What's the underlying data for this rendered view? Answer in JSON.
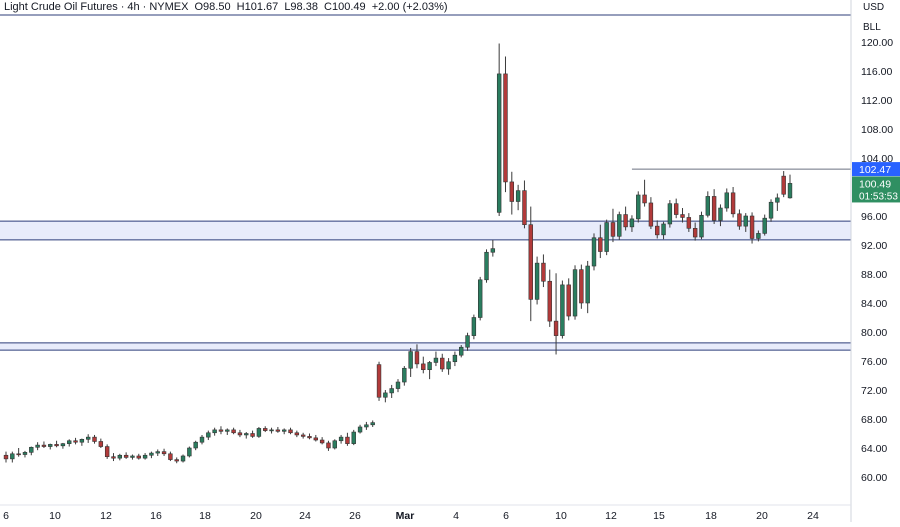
{
  "header": {
    "title": "Light Crude Oil Futures",
    "interval": "4h",
    "exchange": "NYMEX",
    "open": "O98.50",
    "high": "H101.67",
    "low": "L98.38",
    "close": "C100.49",
    "change": "+2.00 (+2.03%)",
    "currency": "USD",
    "unit": "BLL"
  },
  "colors": {
    "up": "#26a69a",
    "up_body": "#2a7d5f",
    "down": "#ef5350",
    "down_body": "#b23a3a",
    "zone_fill": "#e8ecfb",
    "line": "#2c3d7a",
    "badge_blue": "#2962ff",
    "badge_green": "#2f8f62"
  },
  "chart_data": {
    "type": "candlestick",
    "y_axis": {
      "min": 57,
      "max": 121,
      "ticks": [
        60,
        64,
        68,
        72,
        76,
        80,
        84,
        88,
        92,
        96,
        100,
        104,
        108,
        112,
        116,
        120
      ],
      "tick_labels": [
        "60.00",
        "64.00",
        "68.00",
        "72.00",
        "76.00",
        "80.00",
        "84.00",
        "88.00",
        "92.00",
        "96.00",
        "100.00",
        "104.00",
        "108.00",
        "112.00",
        "116.00",
        "120.00"
      ]
    },
    "x_axis": {
      "labels": [
        "6",
        "10",
        "12",
        "16",
        "18",
        "20",
        "24",
        "26",
        "Mar",
        "4",
        "6",
        "10",
        "12",
        "15",
        "18",
        "20",
        "24"
      ]
    },
    "zones": [
      {
        "from": 92.7,
        "to": 95.3
      },
      {
        "from": 77.5,
        "to": 78.5
      }
    ],
    "horizontal_lines": [
      119.8,
      102.47
    ],
    "price_badges": [
      {
        "value": 102.47,
        "label": "102.47"
      },
      {
        "value": 100.49,
        "label": "100.49",
        "countdown": "01:53:53"
      }
    ],
    "candles": [
      [
        63,
        63.5,
        62,
        62.5
      ],
      [
        62.5,
        63.5,
        62,
        63.2
      ],
      [
        63.2,
        64,
        62.8,
        63.1
      ],
      [
        63.1,
        63.6,
        62.7,
        63.4
      ],
      [
        63.4,
        64.2,
        63,
        64.1
      ],
      [
        64.1,
        64.8,
        63.7,
        64.4
      ],
      [
        64.4,
        64.9,
        64,
        64.2
      ],
      [
        64.2,
        64.6,
        63.8,
        64.5
      ],
      [
        64.5,
        65,
        64.1,
        64.3
      ],
      [
        64.3,
        64.7,
        63.9,
        64.6
      ],
      [
        64.6,
        65.2,
        64.2,
        65
      ],
      [
        65,
        65.4,
        64.5,
        64.8
      ],
      [
        64.8,
        65.3,
        64.3,
        65.2
      ],
      [
        65.2,
        65.9,
        64.7,
        65.5
      ],
      [
        65.5,
        65.8,
        64.6,
        64.9
      ],
      [
        64.9,
        65.3,
        64,
        64.2
      ],
      [
        64.2,
        64.5,
        62.5,
        62.8
      ],
      [
        62.8,
        63.3,
        62.2,
        62.6
      ],
      [
        62.6,
        63.2,
        62.3,
        63
      ],
      [
        63,
        63.4,
        62.5,
        62.7
      ],
      [
        62.7,
        63.1,
        62.4,
        62.9
      ],
      [
        62.9,
        63.2,
        62.4,
        62.6
      ],
      [
        62.6,
        63.3,
        62.4,
        63
      ],
      [
        63,
        63.5,
        62.6,
        63.3
      ],
      [
        63.3,
        63.8,
        62.9,
        63.5
      ],
      [
        63.5,
        63.9,
        62.9,
        63.2
      ],
      [
        63.2,
        63.5,
        62.2,
        62.4
      ],
      [
        62.4,
        62.7,
        61.9,
        62.2
      ],
      [
        62.2,
        63.1,
        62,
        62.9
      ],
      [
        62.9,
        64.2,
        62.7,
        64
      ],
      [
        64,
        65,
        63.7,
        64.8
      ],
      [
        64.8,
        65.8,
        64.5,
        65.5
      ],
      [
        65.5,
        66.4,
        65.1,
        66.1
      ],
      [
        66.1,
        66.8,
        65.7,
        66.5
      ],
      [
        66.5,
        67,
        65.9,
        66.3
      ],
      [
        66.3,
        66.7,
        65.8,
        66.5
      ],
      [
        66.5,
        66.8,
        65.9,
        66.1
      ],
      [
        66.1,
        66.5,
        65.5,
        65.8
      ],
      [
        65.8,
        66.2,
        65.3,
        66
      ],
      [
        66,
        66.4,
        65.4,
        65.6
      ],
      [
        65.6,
        66.9,
        65.4,
        66.7
      ],
      [
        66.7,
        67,
        66.2,
        66.4
      ],
      [
        66.4,
        66.8,
        66,
        66.5
      ],
      [
        66.5,
        66.9,
        66.1,
        66.3
      ],
      [
        66.3,
        66.7,
        65.9,
        66.5
      ],
      [
        66.5,
        66.8,
        65.9,
        66.1
      ],
      [
        66.1,
        66.4,
        65.5,
        65.8
      ],
      [
        65.8,
        66.1,
        65.3,
        65.6
      ],
      [
        65.6,
        66,
        65.2,
        65.4
      ],
      [
        65.4,
        65.8,
        64.9,
        65.1
      ],
      [
        65.1,
        65.5,
        64.5,
        64.7
      ],
      [
        64.7,
        65,
        63.6,
        64
      ],
      [
        64,
        65.2,
        63.8,
        65
      ],
      [
        65,
        65.8,
        64.6,
        65.5
      ],
      [
        65.5,
        66.1,
        64.3,
        64.6
      ],
      [
        64.6,
        66.5,
        64.4,
        66.2
      ],
      [
        66.2,
        67.2,
        66,
        66.9
      ],
      [
        66.9,
        67.6,
        66.5,
        67.2
      ],
      [
        67.2,
        67.8,
        66.9,
        67.5
      ],
      [
        75.5,
        75.9,
        70.5,
        71
      ],
      [
        71,
        72,
        70.3,
        71.6
      ],
      [
        71.6,
        72.7,
        70.9,
        72.2
      ],
      [
        72.2,
        73.5,
        71.7,
        73.1
      ],
      [
        73.1,
        75.3,
        72.6,
        75
      ],
      [
        75,
        77.8,
        73.8,
        77.3
      ],
      [
        77.3,
        78.3,
        75,
        75.6
      ],
      [
        75.6,
        76.6,
        74.3,
        74.8
      ],
      [
        74.8,
        76,
        73.5,
        75.8
      ],
      [
        75.8,
        77.3,
        75.3,
        76.4
      ],
      [
        76.4,
        77,
        74.5,
        74.9
      ],
      [
        74.9,
        76.4,
        74.1,
        75.9
      ],
      [
        75.9,
        77.3,
        75.3,
        76.8
      ],
      [
        76.8,
        78.2,
        76.5,
        77.9
      ],
      [
        77.9,
        79.9,
        77.4,
        79.5
      ],
      [
        79.5,
        82.4,
        79,
        82
      ],
      [
        82,
        87.6,
        81.6,
        87.2
      ],
      [
        87.2,
        91.4,
        86.8,
        91
      ],
      [
        91,
        92.7,
        90.4,
        91.5
      ],
      [
        96.5,
        119.8,
        96,
        115.6
      ],
      [
        115.6,
        118,
        99.3,
        100.7
      ],
      [
        100.7,
        102.1,
        96.2,
        98
      ],
      [
        98,
        100.3,
        96.8,
        99.5
      ],
      [
        99.5,
        100.9,
        94.3,
        94.8
      ],
      [
        94.8,
        97.3,
        81.5,
        84.5
      ],
      [
        84.5,
        90.4,
        83.8,
        89.5
      ],
      [
        89.5,
        90.7,
        86.2,
        87
      ],
      [
        87,
        88.6,
        80.7,
        81.5
      ],
      [
        81.5,
        88.1,
        76.9,
        79.5
      ],
      [
        79.5,
        87.1,
        79.1,
        86.5
      ],
      [
        86.5,
        87.4,
        81.6,
        82.2
      ],
      [
        82.2,
        89.2,
        81.7,
        88.6
      ],
      [
        88.6,
        89.3,
        83.2,
        84
      ],
      [
        84,
        89.8,
        82.6,
        89.1
      ],
      [
        89.1,
        93.6,
        88.5,
        93
      ],
      [
        93,
        94.8,
        90.2,
        91.1
      ],
      [
        91.1,
        95.5,
        90.6,
        95.1
      ],
      [
        95.1,
        97,
        92.4,
        93.2
      ],
      [
        93.2,
        96.6,
        92.7,
        96.2
      ],
      [
        96.2,
        97.3,
        94,
        94.5
      ],
      [
        94.5,
        96.1,
        93.8,
        95.6
      ],
      [
        95.6,
        99.4,
        95.1,
        98.9
      ],
      [
        98.9,
        101,
        97.3,
        97.8
      ],
      [
        97.8,
        98.6,
        94.2,
        94.6
      ],
      [
        94.6,
        95.4,
        92.9,
        93.4
      ],
      [
        93.4,
        95.2,
        92.8,
        94.9
      ],
      [
        94.9,
        98.2,
        94.4,
        97.7
      ],
      [
        97.7,
        98.4,
        95.7,
        96.2
      ],
      [
        96.2,
        97.1,
        95.1,
        95.8
      ],
      [
        95.8,
        96.4,
        93.8,
        94.3
      ],
      [
        94.3,
        95.1,
        92.6,
        93.1
      ],
      [
        93.1,
        96.6,
        92.8,
        96.1
      ],
      [
        96.1,
        99.4,
        95.8,
        98.7
      ],
      [
        98.7,
        99.7,
        94.9,
        95.4
      ],
      [
        95.4,
        97.6,
        94.6,
        97.1
      ],
      [
        97.1,
        99.8,
        96.6,
        99.2
      ],
      [
        99.2,
        100,
        95.8,
        96.3
      ],
      [
        96.3,
        96.9,
        94.1,
        94.6
      ],
      [
        94.6,
        96.4,
        93.8,
        96
      ],
      [
        96,
        96.5,
        92.2,
        92.9
      ],
      [
        92.9,
        94,
        92.5,
        93.6
      ],
      [
        93.6,
        96.2,
        93.3,
        95.7
      ],
      [
        95.7,
        98.3,
        95.2,
        97.9
      ],
      [
        97.9,
        99.1,
        96.7,
        98.5
      ],
      [
        101.5,
        102.2,
        98.6,
        99
      ],
      [
        98.5,
        101.7,
        98.4,
        100.5
      ]
    ]
  }
}
